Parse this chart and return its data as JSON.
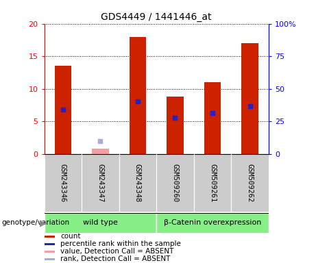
{
  "title": "GDS4449 / 1441446_at",
  "samples": [
    "GSM243346",
    "GSM243347",
    "GSM243348",
    "GSM509260",
    "GSM509261",
    "GSM509262"
  ],
  "count_values": [
    13.5,
    0.8,
    18.0,
    8.8,
    11.0,
    17.0
  ],
  "count_absent": [
    false,
    true,
    false,
    false,
    false,
    false
  ],
  "percentile_values": [
    6.8,
    2.0,
    8.1,
    5.5,
    6.3,
    7.3
  ],
  "percentile_absent": [
    false,
    true,
    false,
    false,
    false,
    false
  ],
  "ylim_left": [
    0,
    20
  ],
  "yticks_left": [
    0,
    5,
    10,
    15,
    20
  ],
  "ytick_labels_left": [
    "0",
    "5",
    "10",
    "15",
    "20"
  ],
  "ytick_labels_right": [
    "0",
    "25",
    "50",
    "75",
    "100%"
  ],
  "groups": [
    {
      "label": "wild type",
      "start": 0,
      "end": 3
    },
    {
      "label": "β-Catenin overexpression",
      "start": 3,
      "end": 6
    }
  ],
  "bar_color": "#cc2200",
  "bar_color_absent": "#f0a0a0",
  "marker_color": "#2222cc",
  "marker_color_absent": "#aaaadd",
  "group_bg_color": "#88ee88",
  "sample_bg_color": "#cccccc",
  "legend_items": [
    {
      "color": "#cc2200",
      "label": "count"
    },
    {
      "color": "#2222cc",
      "label": "percentile rank within the sample"
    },
    {
      "color": "#f0a0a0",
      "label": "value, Detection Call = ABSENT"
    },
    {
      "color": "#aaaadd",
      "label": "rank, Detection Call = ABSENT"
    }
  ],
  "genotype_label": "genotype/variation"
}
